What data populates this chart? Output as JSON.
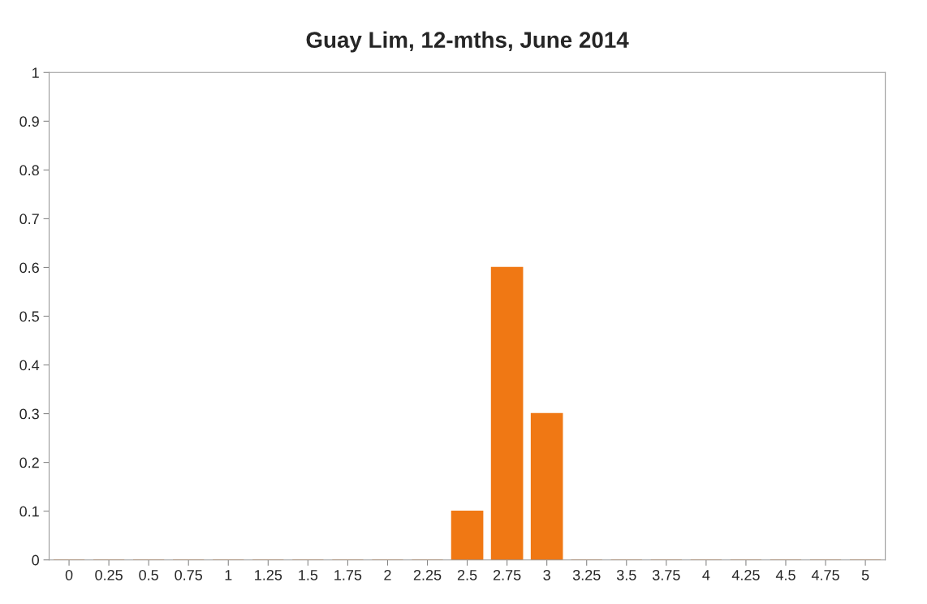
{
  "chart_data": {
    "type": "bar",
    "title": "Guay Lim, 12-mths, June 2014",
    "categories": [
      "0",
      "0.25",
      "0.5",
      "0.75",
      "1",
      "1.25",
      "1.5",
      "1.75",
      "2",
      "2.25",
      "2.5",
      "2.75",
      "3",
      "3.25",
      "3.5",
      "3.75",
      "4",
      "4.25",
      "4.5",
      "4.75",
      "5"
    ],
    "values": [
      0,
      0,
      0,
      0,
      0,
      0,
      0,
      0,
      0,
      0,
      0.1,
      0.6,
      0.3,
      0,
      0,
      0,
      0,
      0,
      0,
      0,
      0
    ],
    "color": "#f07814",
    "ylim": [
      0,
      1
    ],
    "yticks": [
      0,
      0.1,
      0.2,
      0.3,
      0.4,
      0.5,
      0.6,
      0.7,
      0.8,
      0.9,
      1
    ],
    "grid": false,
    "legend": false
  }
}
